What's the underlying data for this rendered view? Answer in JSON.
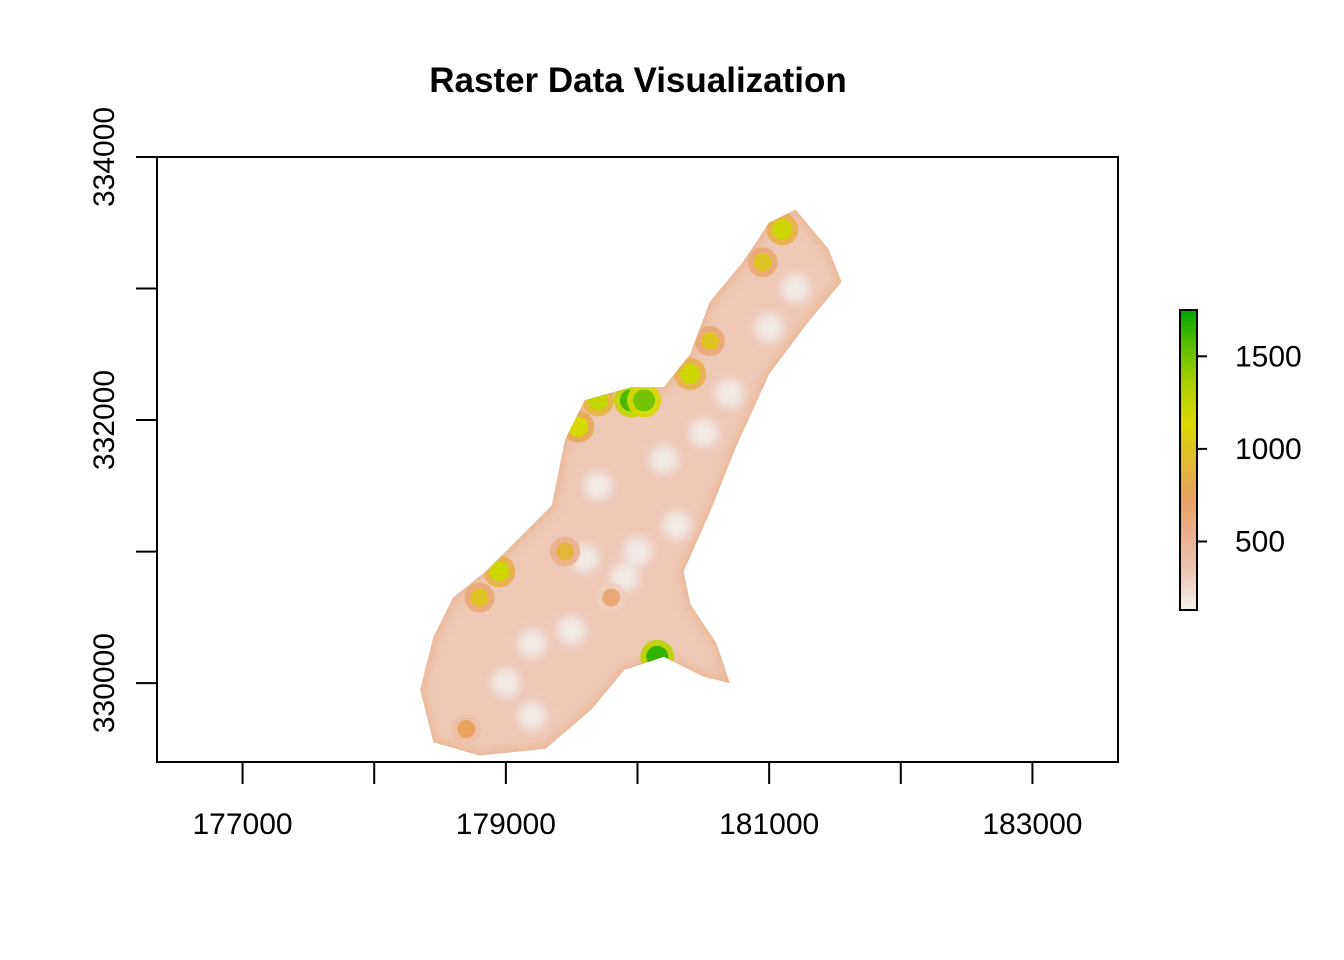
{
  "chart_data": {
    "type": "heatmap",
    "title": "Raster Data Visualization",
    "xlabel": "",
    "ylabel": "",
    "xlim": [
      176350,
      183650
    ],
    "ylim": [
      329400,
      334000
    ],
    "x_ticks": [
      {
        "value": 177000,
        "label": "177000"
      },
      {
        "value": 178000,
        "label": ""
      },
      {
        "value": 179000,
        "label": "179000"
      },
      {
        "value": 180000,
        "label": ""
      },
      {
        "value": 181000,
        "label": "181000"
      },
      {
        "value": 182000,
        "label": ""
      },
      {
        "value": 183000,
        "label": "183000"
      }
    ],
    "y_ticks": [
      {
        "value": 330000,
        "label": "330000"
      },
      {
        "value": 331000,
        "label": ""
      },
      {
        "value": 332000,
        "label": "332000"
      },
      {
        "value": 333000,
        "label": ""
      },
      {
        "value": 334000,
        "label": "334000"
      }
    ],
    "legend": {
      "placement": "right",
      "min": 130,
      "max": 1750,
      "ticks": [
        {
          "value": 500,
          "label": "500"
        },
        {
          "value": 1000,
          "label": "1000"
        },
        {
          "value": 1500,
          "label": "1500"
        }
      ]
    },
    "colors": [
      "#f2f2f2",
      "#eec7b4",
      "#ebb08e",
      "#e8a060",
      "#e2bb30",
      "#d9d900",
      "#aed000",
      "#5fbf00",
      "#00a600"
    ],
    "region_outline": [
      [
        178350,
        329950
      ],
      [
        178450,
        330350
      ],
      [
        178600,
        330650
      ],
      [
        178850,
        330850
      ],
      [
        179100,
        331100
      ],
      [
        179350,
        331350
      ],
      [
        179450,
        331850
      ],
      [
        179600,
        332150
      ],
      [
        179950,
        332250
      ],
      [
        180200,
        332250
      ],
      [
        180400,
        332500
      ],
      [
        180550,
        332900
      ],
      [
        180800,
        333200
      ],
      [
        181000,
        333500
      ],
      [
        181200,
        333600
      ],
      [
        181450,
        333300
      ],
      [
        181550,
        333050
      ],
      [
        181300,
        332750
      ],
      [
        181000,
        332350
      ],
      [
        180750,
        331800
      ],
      [
        180550,
        331300
      ],
      [
        180350,
        330850
      ],
      [
        180400,
        330600
      ],
      [
        180600,
        330300
      ],
      [
        180700,
        330000
      ],
      [
        180500,
        330050
      ],
      [
        180200,
        330200
      ],
      [
        179900,
        330100
      ],
      [
        179650,
        329800
      ],
      [
        179300,
        329500
      ],
      [
        178800,
        329450
      ],
      [
        178450,
        329550
      ]
    ],
    "hotspots": [
      {
        "x": 180150,
        "y": 330200,
        "value": 1650
      },
      {
        "x": 179950,
        "y": 332150,
        "value": 1600
      },
      {
        "x": 180050,
        "y": 332150,
        "value": 1500
      },
      {
        "x": 179700,
        "y": 332150,
        "value": 1250
      },
      {
        "x": 179550,
        "y": 331950,
        "value": 1150
      },
      {
        "x": 180400,
        "y": 332350,
        "value": 1200
      },
      {
        "x": 180550,
        "y": 332600,
        "value": 1000
      },
      {
        "x": 181100,
        "y": 333450,
        "value": 1200
      },
      {
        "x": 180950,
        "y": 333200,
        "value": 1000
      },
      {
        "x": 178950,
        "y": 330850,
        "value": 1200
      },
      {
        "x": 178800,
        "y": 330650,
        "value": 1000
      },
      {
        "x": 179450,
        "y": 331000,
        "value": 900
      },
      {
        "x": 179800,
        "y": 330650,
        "value": 650
      },
      {
        "x": 178700,
        "y": 329650,
        "value": 750
      }
    ],
    "lowspots": [
      {
        "x": 180000,
        "y": 331000
      },
      {
        "x": 180300,
        "y": 331200
      },
      {
        "x": 179600,
        "y": 330950
      },
      {
        "x": 179900,
        "y": 330800
      },
      {
        "x": 180200,
        "y": 331700
      },
      {
        "x": 180500,
        "y": 331900
      },
      {
        "x": 180700,
        "y": 332200
      },
      {
        "x": 181000,
        "y": 332700
      },
      {
        "x": 181200,
        "y": 333000
      },
      {
        "x": 179200,
        "y": 330300
      },
      {
        "x": 179000,
        "y": 330000
      },
      {
        "x": 179500,
        "y": 330400
      },
      {
        "x": 179200,
        "y": 329750
      },
      {
        "x": 179700,
        "y": 331500
      }
    ]
  }
}
